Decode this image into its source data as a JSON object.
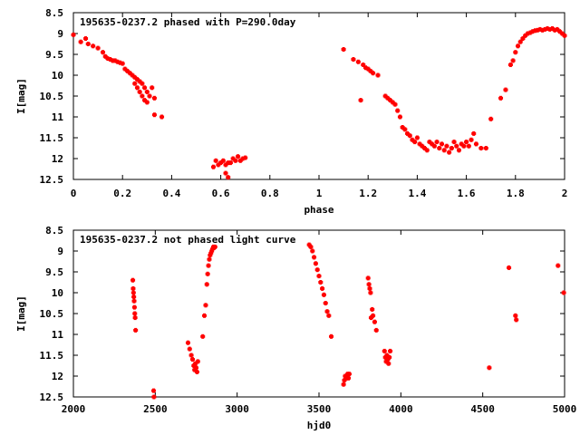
{
  "chart_data": [
    {
      "type": "scatter",
      "title": "195635-0237.2 phased with P=290.0day",
      "xlabel": "phase",
      "ylabel": "I[mag]",
      "xlim": [
        0,
        2
      ],
      "ylim": [
        8.5,
        12.5
      ],
      "y_inverted": true,
      "xticks": [
        "0",
        "0.2",
        "0.4",
        "0.6",
        "0.8",
        "1",
        "1.2",
        "1.4",
        "1.6",
        "1.8",
        "2"
      ],
      "yticks": [
        "8.5",
        "9",
        "9.5",
        "10",
        "10.5",
        "11",
        "11.5",
        "12",
        "12.5"
      ],
      "grid": false,
      "marker_color": "#ff0000",
      "series": [
        {
          "values": [
            [
              0.0,
              9.03
            ],
            [
              0.03,
              9.2
            ],
            [
              0.05,
              9.12
            ],
            [
              0.06,
              9.25
            ],
            [
              0.08,
              9.3
            ],
            [
              0.1,
              9.35
            ],
            [
              0.12,
              9.45
            ],
            [
              0.13,
              9.55
            ],
            [
              0.14,
              9.6
            ],
            [
              0.15,
              9.62
            ],
            [
              0.16,
              9.65
            ],
            [
              0.17,
              9.65
            ],
            [
              0.18,
              9.68
            ],
            [
              0.19,
              9.7
            ],
            [
              0.2,
              9.72
            ],
            [
              0.21,
              9.85
            ],
            [
              0.22,
              9.9
            ],
            [
              0.23,
              9.95
            ],
            [
              0.24,
              10.0
            ],
            [
              0.25,
              10.05
            ],
            [
              0.25,
              10.2
            ],
            [
              0.26,
              10.1
            ],
            [
              0.26,
              10.3
            ],
            [
              0.27,
              10.15
            ],
            [
              0.27,
              10.4
            ],
            [
              0.28,
              10.2
            ],
            [
              0.28,
              10.5
            ],
            [
              0.29,
              10.3
            ],
            [
              0.29,
              10.6
            ],
            [
              0.3,
              10.4
            ],
            [
              0.3,
              10.65
            ],
            [
              0.31,
              10.5
            ],
            [
              0.32,
              10.3
            ],
            [
              0.33,
              10.55
            ],
            [
              0.33,
              10.95
            ],
            [
              0.36,
              11.0
            ],
            [
              0.57,
              12.2
            ],
            [
              0.58,
              12.05
            ],
            [
              0.59,
              12.15
            ],
            [
              0.6,
              12.1
            ],
            [
              0.61,
              12.05
            ],
            [
              0.62,
              12.15
            ],
            [
              0.62,
              12.35
            ],
            [
              0.63,
              12.1
            ],
            [
              0.63,
              12.45
            ],
            [
              0.64,
              12.1
            ],
            [
              0.65,
              12.0
            ],
            [
              0.66,
              12.05
            ],
            [
              0.67,
              11.95
            ],
            [
              0.68,
              12.05
            ],
            [
              0.69,
              12.0
            ],
            [
              0.7,
              11.98
            ],
            [
              1.1,
              9.38
            ],
            [
              1.14,
              9.62
            ],
            [
              1.16,
              9.68
            ],
            [
              1.17,
              10.6
            ],
            [
              1.18,
              9.75
            ],
            [
              1.19,
              9.82
            ],
            [
              1.2,
              9.85
            ],
            [
              1.21,
              9.9
            ],
            [
              1.22,
              9.95
            ],
            [
              1.24,
              10.0
            ],
            [
              1.27,
              10.5
            ],
            [
              1.28,
              10.55
            ],
            [
              1.29,
              10.6
            ],
            [
              1.3,
              10.65
            ],
            [
              1.31,
              10.7
            ],
            [
              1.32,
              10.85
            ],
            [
              1.33,
              11.0
            ],
            [
              1.34,
              11.25
            ],
            [
              1.35,
              11.3
            ],
            [
              1.36,
              11.4
            ],
            [
              1.37,
              11.45
            ],
            [
              1.38,
              11.55
            ],
            [
              1.39,
              11.6
            ],
            [
              1.4,
              11.5
            ],
            [
              1.41,
              11.65
            ],
            [
              1.42,
              11.7
            ],
            [
              1.43,
              11.75
            ],
            [
              1.44,
              11.8
            ],
            [
              1.45,
              11.6
            ],
            [
              1.46,
              11.65
            ],
            [
              1.47,
              11.7
            ],
            [
              1.48,
              11.6
            ],
            [
              1.49,
              11.75
            ],
            [
              1.5,
              11.65
            ],
            [
              1.51,
              11.8
            ],
            [
              1.52,
              11.7
            ],
            [
              1.53,
              11.85
            ],
            [
              1.54,
              11.75
            ],
            [
              1.55,
              11.6
            ],
            [
              1.56,
              11.7
            ],
            [
              1.57,
              11.8
            ],
            [
              1.58,
              11.65
            ],
            [
              1.59,
              11.7
            ],
            [
              1.6,
              11.6
            ],
            [
              1.61,
              11.7
            ],
            [
              1.62,
              11.55
            ],
            [
              1.63,
              11.4
            ],
            [
              1.64,
              11.65
            ],
            [
              1.66,
              11.75
            ],
            [
              1.68,
              11.75
            ],
            [
              1.7,
              11.05
            ],
            [
              1.74,
              10.55
            ],
            [
              1.76,
              10.35
            ],
            [
              1.78,
              9.75
            ],
            [
              1.79,
              9.65
            ],
            [
              1.8,
              9.45
            ],
            [
              1.81,
              9.3
            ],
            [
              1.82,
              9.2
            ],
            [
              1.83,
              9.12
            ],
            [
              1.84,
              9.05
            ],
            [
              1.85,
              9.0
            ],
            [
              1.86,
              8.98
            ],
            [
              1.87,
              8.95
            ],
            [
              1.88,
              8.93
            ],
            [
              1.89,
              8.92
            ],
            [
              1.9,
              8.9
            ],
            [
              1.91,
              8.92
            ],
            [
              1.92,
              8.9
            ],
            [
              1.93,
              8.88
            ],
            [
              1.94,
              8.9
            ],
            [
              1.95,
              8.88
            ],
            [
              1.96,
              8.92
            ],
            [
              1.97,
              8.9
            ],
            [
              1.98,
              8.95
            ],
            [
              1.99,
              9.0
            ],
            [
              2.0,
              9.05
            ]
          ]
        }
      ]
    },
    {
      "type": "scatter",
      "title": "195635-0237.2 not phased light curve",
      "xlabel": "hjd0",
      "ylabel": "I[mag]",
      "xlim": [
        2000,
        5000
      ],
      "ylim": [
        8.5,
        12.5
      ],
      "y_inverted": true,
      "xticks": [
        "2000",
        "2500",
        "3000",
        "3500",
        "4000",
        "4500",
        "5000"
      ],
      "yticks": [
        "8.5",
        "9",
        "9.5",
        "10",
        "10.5",
        "11",
        "11.5",
        "12",
        "12.5"
      ],
      "grid": false,
      "marker_color": "#ff0000",
      "series": [
        {
          "values": [
            [
              2363,
              9.7
            ],
            [
              2365,
              9.9
            ],
            [
              2367,
              10.0
            ],
            [
              2369,
              10.1
            ],
            [
              2371,
              10.2
            ],
            [
              2373,
              10.35
            ],
            [
              2375,
              10.5
            ],
            [
              2377,
              10.6
            ],
            [
              2380,
              10.9
            ],
            [
              2490,
              12.35
            ],
            [
              2492,
              12.5
            ],
            [
              2700,
              11.2
            ],
            [
              2710,
              11.35
            ],
            [
              2720,
              11.5
            ],
            [
              2728,
              11.6
            ],
            [
              2735,
              11.75
            ],
            [
              2740,
              11.85
            ],
            [
              2745,
              11.7
            ],
            [
              2750,
              11.8
            ],
            [
              2755,
              11.9
            ],
            [
              2760,
              11.65
            ],
            [
              2790,
              11.05
            ],
            [
              2800,
              10.55
            ],
            [
              2808,
              10.3
            ],
            [
              2815,
              9.8
            ],
            [
              2820,
              9.55
            ],
            [
              2825,
              9.35
            ],
            [
              2830,
              9.2
            ],
            [
              2835,
              9.1
            ],
            [
              2840,
              9.05
            ],
            [
              2845,
              9.0
            ],
            [
              2850,
              8.95
            ],
            [
              2855,
              8.9
            ],
            [
              2860,
              8.92
            ],
            [
              2865,
              8.9
            ],
            [
              3440,
              8.85
            ],
            [
              3450,
              8.9
            ],
            [
              3460,
              9.0
            ],
            [
              3470,
              9.15
            ],
            [
              3480,
              9.3
            ],
            [
              3490,
              9.45
            ],
            [
              3500,
              9.6
            ],
            [
              3510,
              9.75
            ],
            [
              3520,
              9.9
            ],
            [
              3530,
              10.05
            ],
            [
              3540,
              10.25
            ],
            [
              3550,
              10.45
            ],
            [
              3560,
              10.55
            ],
            [
              3575,
              11.05
            ],
            [
              3650,
              12.2
            ],
            [
              3655,
              12.1
            ],
            [
              3660,
              12.0
            ],
            [
              3665,
              12.05
            ],
            [
              3670,
              12.0
            ],
            [
              3675,
              11.95
            ],
            [
              3680,
              12.05
            ],
            [
              3685,
              11.95
            ],
            [
              3800,
              9.65
            ],
            [
              3805,
              9.8
            ],
            [
              3810,
              9.9
            ],
            [
              3815,
              10.0
            ],
            [
              3818,
              10.6
            ],
            [
              3825,
              10.4
            ],
            [
              3830,
              10.55
            ],
            [
              3840,
              10.7
            ],
            [
              3850,
              10.9
            ],
            [
              3900,
              11.4
            ],
            [
              3905,
              11.55
            ],
            [
              3910,
              11.65
            ],
            [
              3915,
              11.5
            ],
            [
              3920,
              11.6
            ],
            [
              3925,
              11.7
            ],
            [
              3930,
              11.55
            ],
            [
              3935,
              11.4
            ],
            [
              4540,
              11.8
            ],
            [
              4660,
              9.4
            ],
            [
              4700,
              10.55
            ],
            [
              4705,
              10.65
            ],
            [
              4960,
              9.35
            ],
            [
              4995,
              10.0
            ]
          ]
        }
      ]
    }
  ]
}
